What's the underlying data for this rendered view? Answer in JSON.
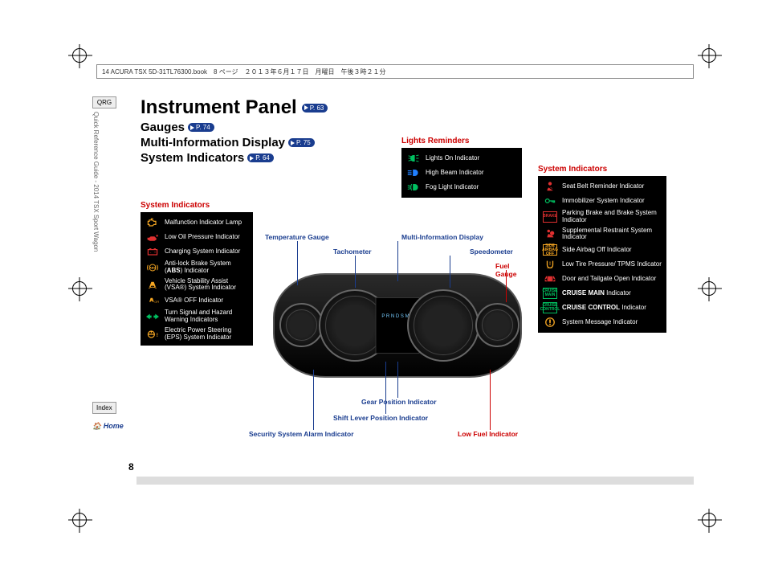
{
  "header_strip": "14 ACURA TSX 5D-31TL76300.book　8 ページ　２０１３年６月１７日　月曜日　午後３時２１分",
  "sidebar": {
    "qrg": "QRG",
    "vertical": "Quick Reference Guide - 2014 TSX Sport Wagon",
    "index": "Index",
    "home": "Home"
  },
  "page_number": "8",
  "title": "Instrument Panel",
  "title_page_ref": "P. 63",
  "subtitles": [
    {
      "text": "Gauges",
      "ref": "P. 74"
    },
    {
      "text": "Multi-Information Display",
      "ref": "P. 75"
    },
    {
      "text": "System Indicators",
      "ref": "P. 64"
    }
  ],
  "left_box": {
    "heading": "System Indicators",
    "items": [
      {
        "icon": "engine",
        "color": "#f5a623",
        "label": "Malfunction Indicator Lamp"
      },
      {
        "icon": "oil",
        "color": "#e03030",
        "label": "Low Oil Pressure Indicator"
      },
      {
        "icon": "battery",
        "color": "#e03030",
        "label": "Charging System Indicator"
      },
      {
        "icon": "abs",
        "color": "#f5a623",
        "label": "Anti-lock Brake System (ABS) Indicator"
      },
      {
        "icon": "vsa",
        "color": "#f5a623",
        "label": "Vehicle Stability Assist (VSA®) System Indicator"
      },
      {
        "icon": "vsa-off",
        "color": "#f5a623",
        "label": "VSA® OFF Indicator"
      },
      {
        "icon": "turn",
        "color": "#00c060",
        "label": "Turn Signal and Hazard Warning Indicators"
      },
      {
        "icon": "eps",
        "color": "#f5a623",
        "label": "Electric Power Steering (EPS) System Indicator"
      }
    ]
  },
  "lights_box": {
    "heading": "Lights Reminders",
    "items": [
      {
        "icon": "lights-on",
        "color": "#00c060",
        "label": "Lights On Indicator"
      },
      {
        "icon": "high-beam",
        "color": "#2080ff",
        "label": "High Beam Indicator"
      },
      {
        "icon": "fog",
        "color": "#00c060",
        "label": "Fog Light Indicator"
      }
    ]
  },
  "right_box": {
    "heading": "System Indicators",
    "items": [
      {
        "icon": "seatbelt",
        "color": "#e03030",
        "label": "Seat Belt Reminder Indicator"
      },
      {
        "icon": "immobilizer",
        "color": "#00c060",
        "label": "Immobilizer System Indicator"
      },
      {
        "icon": "brake",
        "color": "#e03030",
        "text": "BRAKE",
        "label": "Parking Brake and Brake System Indicator"
      },
      {
        "icon": "srs",
        "color": "#e03030",
        "label": "Supplemental Restraint System Indicator"
      },
      {
        "icon": "side-airbag",
        "color": "#f5a623",
        "text": "SIDE AIRBAG OFF",
        "label": "Side Airbag Off Indicator"
      },
      {
        "icon": "tpms",
        "color": "#f5a623",
        "label": "Low Tire Pressure/ TPMS Indicator"
      },
      {
        "icon": "door",
        "color": "#e03030",
        "label": "Door and Tailgate Open Indicator"
      },
      {
        "icon": "cruise-main",
        "color": "#00c060",
        "text": "CRUISE MAIN",
        "label": "CRUISE MAIN Indicator"
      },
      {
        "icon": "cruise-ctrl",
        "color": "#00c060",
        "text": "CRUISE CONTROL",
        "label": "CRUISE CONTROL Indicator"
      },
      {
        "icon": "message",
        "color": "#f5a623",
        "label": "System Message Indicator"
      }
    ]
  },
  "callouts": {
    "temp": "Temperature Gauge",
    "tach": "Tachometer",
    "mid": "Multi-Information Display",
    "speedo": "Speedometer",
    "fuel": "Fuel Gauge",
    "gear": "Gear Position Indicator",
    "shift": "Shift Lever Position Indicator",
    "security": "Security System Alarm Indicator",
    "lowfuel": "Low Fuel Indicator"
  },
  "center_display": "P R N D S\nM 8",
  "colors": {
    "navy": "#1a3d8f",
    "red": "#c00000",
    "amber": "#f5a623",
    "green": "#00c060",
    "blue": "#2080ff",
    "warn_red": "#e03030"
  }
}
